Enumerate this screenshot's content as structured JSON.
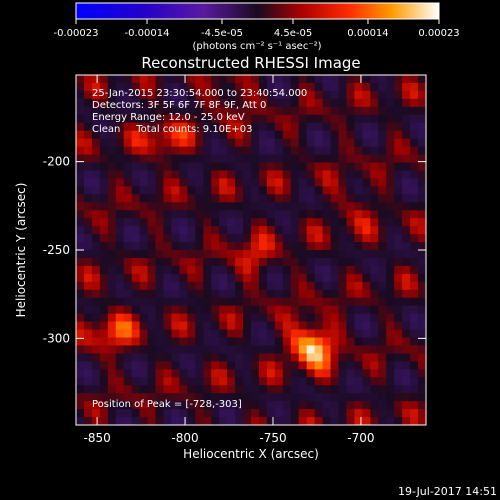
{
  "colorbar": {
    "tick_labels": [
      "-0.00023",
      "-0.00014",
      "-4.5e-05",
      "4.5e-05",
      "0.00014",
      "0.00023"
    ],
    "tick_values": [
      -0.00023,
      -0.00014,
      -4.5e-05,
      4.5e-05,
      0.00014,
      0.00023
    ],
    "range": [
      -0.00023,
      0.00023
    ],
    "unit_label": "(photons cm⁻² s⁻¹ asec⁻²)"
  },
  "chart_data": {
    "type": "heatmap",
    "title": "Reconstructed RHESSI Image",
    "xlabel": "Heliocentric X (arcsec)",
    "ylabel": "Heliocentric Y (arcsec)",
    "xlim": [
      -862,
      -663
    ],
    "ylim": [
      -349,
      -151
    ],
    "x_ticks": [
      -850,
      -800,
      -750,
      -700
    ],
    "x_tick_labels": [
      "-850",
      "-800",
      "-750",
      "-700"
    ],
    "y_ticks": [
      -200,
      -250,
      -300
    ],
    "y_tick_labels": [
      "-200",
      "-250",
      "-300"
    ],
    "peak": {
      "x": -728,
      "y": -303
    },
    "sources": [
      {
        "x": -728,
        "y": -303,
        "value": 0.00023
      },
      {
        "x": -842,
        "y": -295,
        "value": 0.00012
      },
      {
        "x": -812,
        "y": -188,
        "value": 0.0001
      },
      {
        "x": -775,
        "y": -160,
        "value": 9e-05
      },
      {
        "x": -760,
        "y": -255,
        "value": 8e-05
      },
      {
        "x": -705,
        "y": -225,
        "value": 7e-05
      }
    ]
  },
  "annotations": {
    "time_range": "25-Jan-2015 23:30:54.000 to 23:40:54.000",
    "detectors": "Detectors: 3F 5F 6F 7F 8F 9F, Att 0",
    "energy": "Energy Range: 12.0 - 25.0 keV",
    "clean": "Clean     Total counts: 9.10E+03",
    "peak_label": "Position of Peak = [-728,-303]"
  },
  "footer": {
    "date": "19-Jul-2017 14:51"
  }
}
